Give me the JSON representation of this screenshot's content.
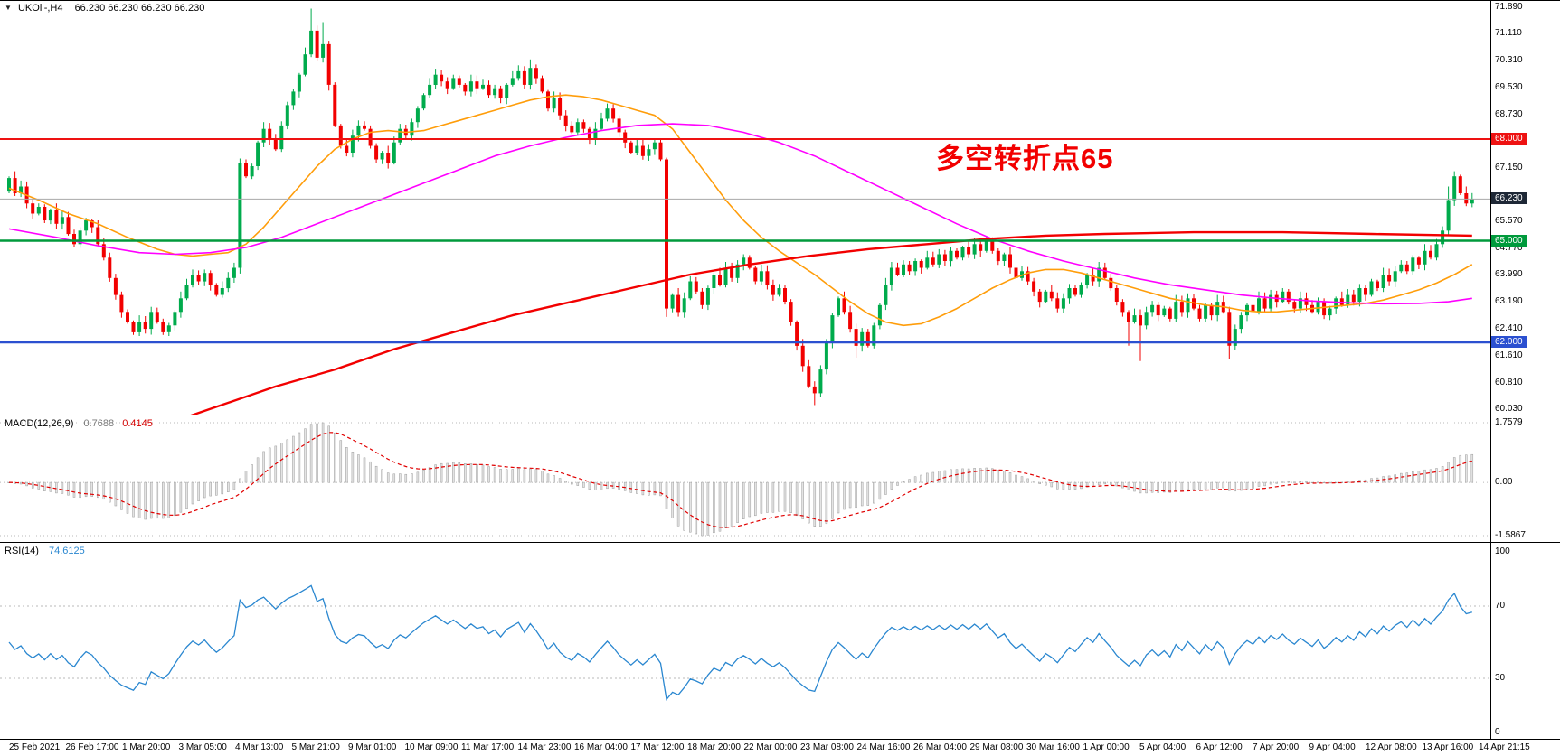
{
  "ui": {
    "main": {
      "collapse_glyph": "▼",
      "symbol_period": "UKOil-,H4",
      "ohlc": "66.230 66.230 66.230 66.230",
      "annotation": {
        "text": "多空转折点65",
        "color": "#f20000"
      }
    },
    "macd": {
      "title": "MACD(12,26,9)",
      "value_main": "0.7688",
      "value_signal": "0.4145"
    },
    "rsi": {
      "title": "RSI(14)",
      "value": "74.6125"
    }
  },
  "chart_data": {
    "type": "candlestick",
    "symbol": "UKOil-",
    "timeframe": "H4",
    "current_price": 66.23,
    "price_axis_range": {
      "max": 71.89,
      "min": 59.95
    },
    "up_color": "#00ab4c",
    "down_color": "#f20000",
    "axes": {
      "price_ticks": [
        "71.890",
        "71.110",
        "70.310",
        "69.530",
        "68.730",
        "67.150",
        "65.570",
        "64.770",
        "63.990",
        "63.190",
        "62.410",
        "61.610",
        "60.810",
        "60.030"
      ],
      "time_labels": [
        "25 Feb 2021",
        "26 Feb 17:00",
        "1 Mar 20:00",
        "3 Mar 05:00",
        "4 Mar 13:00",
        "5 Mar 21:00",
        "9 Mar 01:00",
        "10 Mar 09:00",
        "11 Mar 17:00",
        "14 Mar 23:00",
        "16 Mar 04:00",
        "17 Mar 12:00",
        "18 Mar 20:00",
        "22 Mar 00:00",
        "23 Mar 08:00",
        "24 Mar 16:00",
        "26 Mar 04:00",
        "29 Mar 08:00",
        "30 Mar 16:00",
        "1 Apr 00:00",
        "5 Apr 04:00",
        "6 Apr 12:00",
        "7 Apr 20:00",
        "9 Apr 04:00",
        "12 Apr 08:00",
        "13 Apr 16:00",
        "14 Apr 21:15"
      ],
      "macd_ticks": [
        "1.7579",
        "0.00",
        "-1.5867"
      ],
      "rsi_ticks": [
        "100",
        "70",
        "30",
        "0"
      ]
    },
    "levels": [
      {
        "value": 68.0,
        "label": "68.000",
        "color": "#ee1212",
        "width": 2
      },
      {
        "value": 65.0,
        "label": "65.000",
        "color": "#009a3c",
        "width": 2.4
      },
      {
        "value": 62.0,
        "label": "62.000",
        "color": "#2b50d0",
        "width": 2.4
      }
    ],
    "current_price_level": {
      "value": 66.23,
      "label": "66.230",
      "line_color": "#a8a8a8",
      "badge": "#1e2836"
    },
    "candles": {
      "first_open": 66.45,
      "closes": [
        66.85,
        66.4,
        66.6,
        66.1,
        65.8,
        66.0,
        65.6,
        65.9,
        65.5,
        65.7,
        65.2,
        64.9,
        65.3,
        65.6,
        65.4,
        64.9,
        64.5,
        63.9,
        63.4,
        62.9,
        62.6,
        62.3,
        62.6,
        62.4,
        62.9,
        62.6,
        62.3,
        62.5,
        62.9,
        63.3,
        63.7,
        64.0,
        63.8,
        64.05,
        63.7,
        63.4,
        63.6,
        63.9,
        64.2,
        67.3,
        66.9,
        67.2,
        67.9,
        68.3,
        68.0,
        67.7,
        68.4,
        69.0,
        69.4,
        69.9,
        70.5,
        71.2,
        70.4,
        70.8,
        69.6,
        68.4,
        67.8,
        67.6,
        68.1,
        68.4,
        68.3,
        67.8,
        67.4,
        67.6,
        67.3,
        67.9,
        68.3,
        68.1,
        68.5,
        68.9,
        69.3,
        69.6,
        69.9,
        69.7,
        69.5,
        69.8,
        69.6,
        69.4,
        69.7,
        69.5,
        69.6,
        69.3,
        69.5,
        69.2,
        69.6,
        69.8,
        70.0,
        69.6,
        70.1,
        69.8,
        69.4,
        68.9,
        69.2,
        68.7,
        68.4,
        68.2,
        68.5,
        68.3,
        68.0,
        68.3,
        68.6,
        68.9,
        68.6,
        68.2,
        67.9,
        67.6,
        67.8,
        67.5,
        67.7,
        67.9,
        67.4,
        63.0,
        63.4,
        62.9,
        63.3,
        63.8,
        63.5,
        63.1,
        63.6,
        64.0,
        63.7,
        64.2,
        63.9,
        64.3,
        64.5,
        64.2,
        63.8,
        64.1,
        63.7,
        63.4,
        63.6,
        63.2,
        62.6,
        61.9,
        61.3,
        60.7,
        60.5,
        61.2,
        62.0,
        62.8,
        63.3,
        62.9,
        62.4,
        61.9,
        62.3,
        61.9,
        62.5,
        63.1,
        63.7,
        64.2,
        64.0,
        64.3,
        64.1,
        64.4,
        64.2,
        64.5,
        64.3,
        64.6,
        64.4,
        64.7,
        64.5,
        64.8,
        64.6,
        64.9,
        64.7,
        65.0,
        64.7,
        64.4,
        64.6,
        64.2,
        63.9,
        64.1,
        63.8,
        63.5,
        63.2,
        63.5,
        63.3,
        63.0,
        63.3,
        63.6,
        63.4,
        63.7,
        64.0,
        63.8,
        64.2,
        63.9,
        63.6,
        63.2,
        62.9,
        62.6,
        62.8,
        62.5,
        62.9,
        63.1,
        62.8,
        63.0,
        62.7,
        63.2,
        62.9,
        63.3,
        63.0,
        62.7,
        63.1,
        62.8,
        63.2,
        62.9,
        61.9,
        62.4,
        62.8,
        63.1,
        62.9,
        63.3,
        63.0,
        63.4,
        63.2,
        63.5,
        63.2,
        63.0,
        63.3,
        63.1,
        62.9,
        63.2,
        62.8,
        63.0,
        63.3,
        63.1,
        63.4,
        63.2,
        63.6,
        63.4,
        63.8,
        63.6,
        64.0,
        63.8,
        64.1,
        64.3,
        64.1,
        64.5,
        64.3,
        64.7,
        64.5,
        64.9,
        65.3,
        66.2,
        66.9,
        66.4,
        66.1,
        66.23
      ],
      "wick_overrides": {
        "51": [
          71.85,
          null
        ],
        "53": [
          71.45,
          null
        ],
        "88": [
          70.35,
          null
        ],
        "111": [
          67.45,
          62.75
        ],
        "136": [
          null,
          60.15
        ],
        "143": [
          null,
          61.55
        ],
        "189": [
          null,
          61.9
        ],
        "191": [
          null,
          61.45
        ],
        "206": [
          null,
          61.5
        ],
        "243": [
          66.6,
          null
        ],
        "244": [
          67.05,
          null
        ]
      }
    },
    "moving_averages": [
      {
        "name": "ma-fast-orange",
        "color": "#ff9d0a",
        "width": 1.6,
        "points": [
          [
            0,
            66.55
          ],
          [
            5,
            66.2
          ],
          [
            10,
            65.8
          ],
          [
            15,
            65.5
          ],
          [
            20,
            65.1
          ],
          [
            25,
            64.75
          ],
          [
            28,
            64.6
          ],
          [
            31,
            64.55
          ],
          [
            34,
            64.6
          ],
          [
            37,
            64.65
          ],
          [
            40,
            64.9
          ],
          [
            43,
            65.4
          ],
          [
            46,
            66.0
          ],
          [
            49,
            66.6
          ],
          [
            52,
            67.2
          ],
          [
            55,
            67.7
          ],
          [
            58,
            68.0
          ],
          [
            61,
            68.2
          ],
          [
            64,
            68.25
          ],
          [
            67,
            68.2
          ],
          [
            70,
            68.25
          ],
          [
            73,
            68.4
          ],
          [
            76,
            68.55
          ],
          [
            79,
            68.7
          ],
          [
            82,
            68.85
          ],
          [
            85,
            69.0
          ],
          [
            88,
            69.15
          ],
          [
            91,
            69.25
          ],
          [
            94,
            69.3
          ],
          [
            97,
            69.25
          ],
          [
            100,
            69.15
          ],
          [
            103,
            69.0
          ],
          [
            106,
            68.85
          ],
          [
            109,
            68.7
          ],
          [
            112,
            68.3
          ],
          [
            115,
            67.6
          ],
          [
            118,
            66.9
          ],
          [
            121,
            66.2
          ],
          [
            124,
            65.6
          ],
          [
            127,
            65.1
          ],
          [
            130,
            64.7
          ],
          [
            133,
            64.35
          ],
          [
            136,
            64.0
          ],
          [
            139,
            63.6
          ],
          [
            142,
            63.2
          ],
          [
            145,
            62.85
          ],
          [
            148,
            62.6
          ],
          [
            151,
            62.5
          ],
          [
            154,
            62.55
          ],
          [
            157,
            62.75
          ],
          [
            160,
            63.0
          ],
          [
            163,
            63.3
          ],
          [
            166,
            63.6
          ],
          [
            169,
            63.85
          ],
          [
            172,
            64.05
          ],
          [
            175,
            64.15
          ],
          [
            178,
            64.15
          ],
          [
            181,
            64.05
          ],
          [
            184,
            63.9
          ],
          [
            187,
            63.75
          ],
          [
            190,
            63.6
          ],
          [
            193,
            63.45
          ],
          [
            196,
            63.3
          ],
          [
            199,
            63.2
          ],
          [
            202,
            63.1
          ],
          [
            205,
            63.05
          ],
          [
            208,
            62.95
          ],
          [
            211,
            62.9
          ],
          [
            214,
            62.9
          ],
          [
            217,
            62.95
          ],
          [
            220,
            63.0
          ],
          [
            223,
            63.05
          ],
          [
            226,
            63.1
          ],
          [
            229,
            63.15
          ],
          [
            232,
            63.25
          ],
          [
            235,
            63.4
          ],
          [
            238,
            63.55
          ],
          [
            241,
            63.75
          ],
          [
            244,
            64.0
          ],
          [
            247,
            64.3
          ]
        ]
      },
      {
        "name": "ma-mid-magenta",
        "color": "#ff00ff",
        "width": 1.6,
        "points": [
          [
            0,
            65.35
          ],
          [
            8,
            65.1
          ],
          [
            15,
            64.85
          ],
          [
            22,
            64.65
          ],
          [
            28,
            64.6
          ],
          [
            34,
            64.65
          ],
          [
            40,
            64.8
          ],
          [
            46,
            65.1
          ],
          [
            52,
            65.5
          ],
          [
            58,
            65.9
          ],
          [
            64,
            66.3
          ],
          [
            70,
            66.7
          ],
          [
            76,
            67.1
          ],
          [
            82,
            67.5
          ],
          [
            88,
            67.8
          ],
          [
            94,
            68.05
          ],
          [
            100,
            68.25
          ],
          [
            106,
            68.4
          ],
          [
            112,
            68.45
          ],
          [
            118,
            68.4
          ],
          [
            124,
            68.2
          ],
          [
            130,
            67.9
          ],
          [
            136,
            67.5
          ],
          [
            142,
            67.0
          ],
          [
            148,
            66.5
          ],
          [
            154,
            66.0
          ],
          [
            160,
            65.5
          ],
          [
            166,
            65.05
          ],
          [
            172,
            64.7
          ],
          [
            178,
            64.4
          ],
          [
            184,
            64.15
          ],
          [
            190,
            63.9
          ],
          [
            196,
            63.7
          ],
          [
            202,
            63.55
          ],
          [
            208,
            63.4
          ],
          [
            214,
            63.3
          ],
          [
            220,
            63.22
          ],
          [
            226,
            63.17
          ],
          [
            232,
            63.14
          ],
          [
            238,
            63.15
          ],
          [
            243,
            63.2
          ],
          [
            247,
            63.3
          ]
        ]
      },
      {
        "name": "ma-slow-red",
        "color": "#f20000",
        "width": 2.4,
        "points": [
          [
            15,
            58.8
          ],
          [
            25,
            59.5
          ],
          [
            35,
            60.1
          ],
          [
            45,
            60.7
          ],
          [
            55,
            61.2
          ],
          [
            65,
            61.8
          ],
          [
            75,
            62.3
          ],
          [
            85,
            62.8
          ],
          [
            95,
            63.2
          ],
          [
            105,
            63.6
          ],
          [
            115,
            64.0
          ],
          [
            125,
            64.3
          ],
          [
            135,
            64.55
          ],
          [
            145,
            64.75
          ],
          [
            155,
            64.9
          ],
          [
            165,
            65.05
          ],
          [
            175,
            65.15
          ],
          [
            185,
            65.2
          ],
          [
            200,
            65.25
          ],
          [
            215,
            65.25
          ],
          [
            230,
            65.2
          ],
          [
            247,
            65.15
          ]
        ]
      }
    ],
    "indicators": {
      "macd": {
        "label": "MACD(12,26,9)",
        "main": 0.7688,
        "signal": 0.4145,
        "histogram_color": "#e4e4e4",
        "histogram_border": "#9c9c9c",
        "signal_color": "#e00000",
        "scale_max": 1.7579,
        "scale_min": -1.5867
      },
      "rsi": {
        "label": "RSI(14)",
        "value": 74.6125,
        "line_color": "#2a87d0",
        "levels": [
          70,
          30
        ]
      }
    }
  }
}
